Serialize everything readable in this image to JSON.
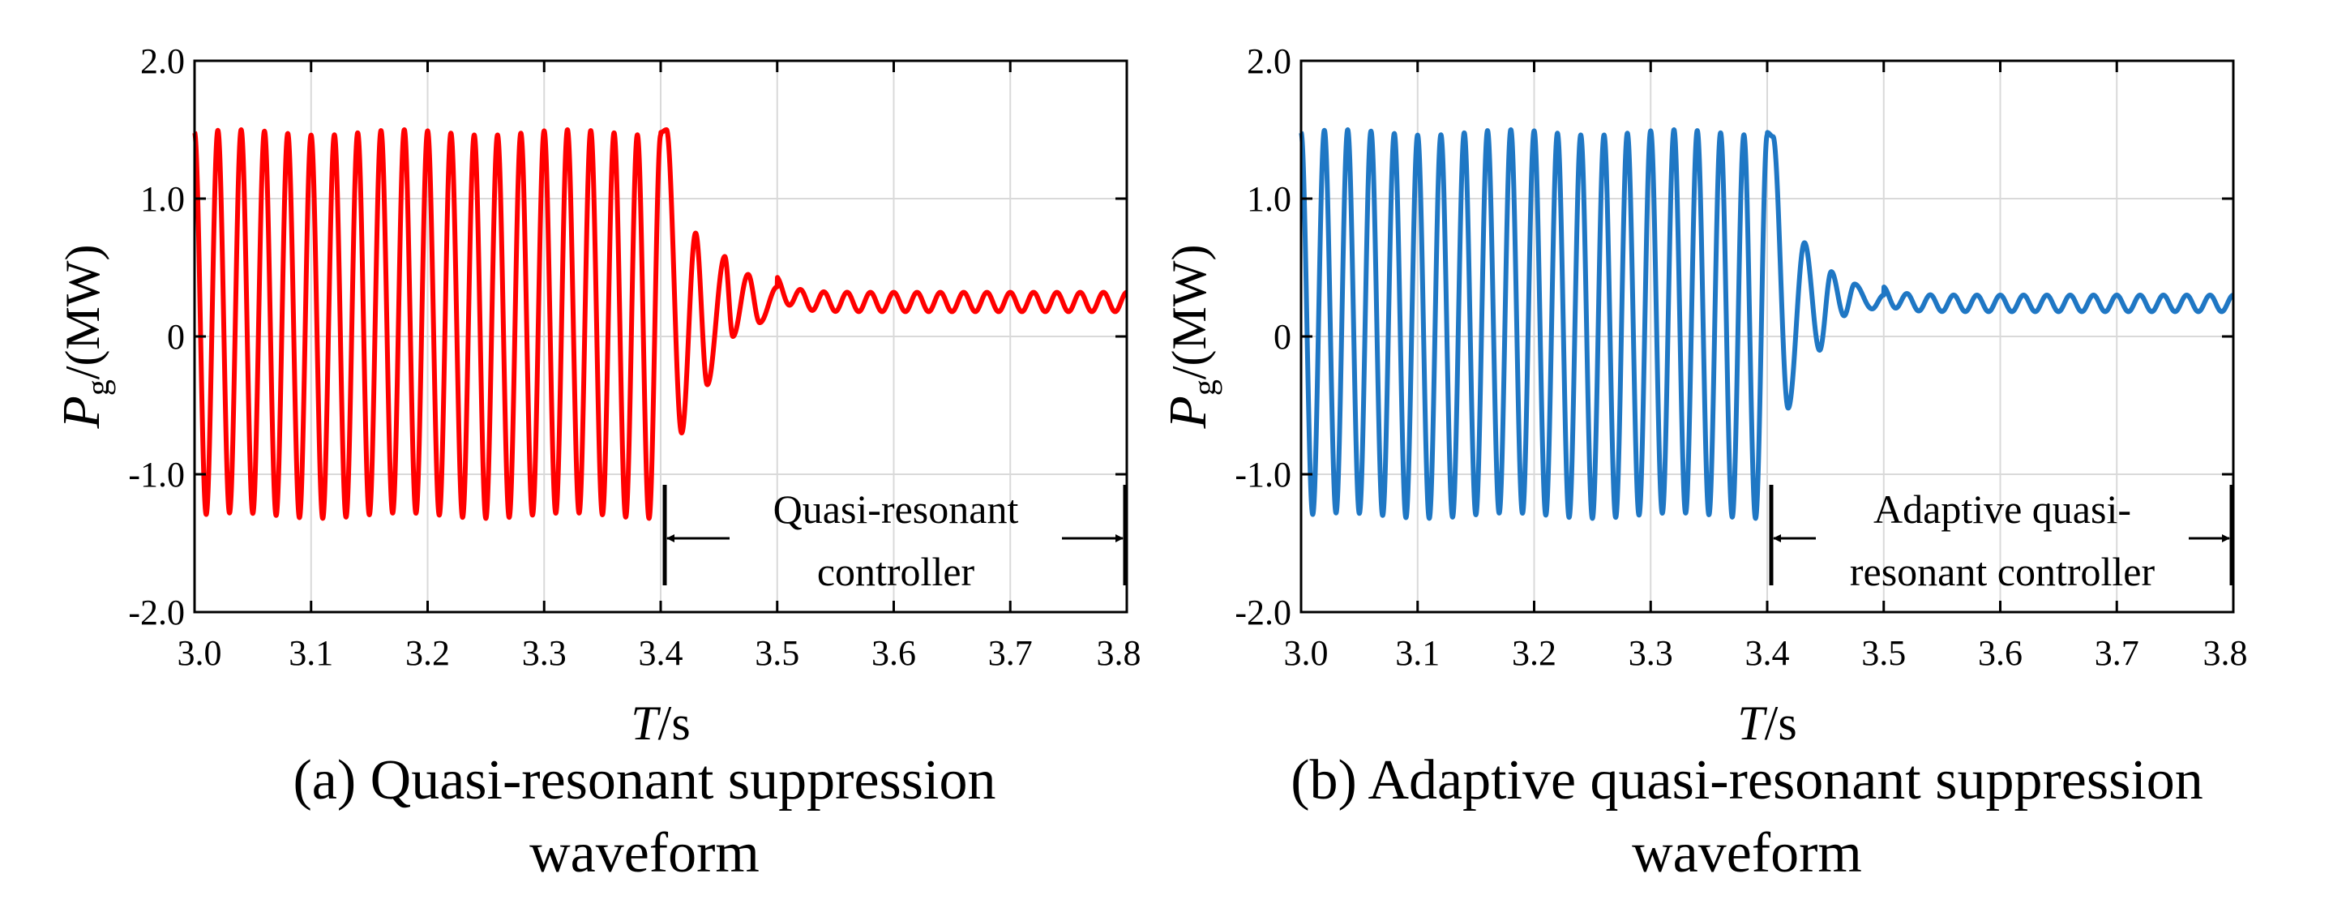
{
  "chart_data": [
    {
      "type": "line",
      "panel": "a",
      "caption_lines": [
        "(a) Quasi-resonant suppression",
        "waveform"
      ],
      "series": [
        {
          "name": "Pg",
          "color": "#ff0000"
        }
      ],
      "xlabel_var": "T",
      "xlabel_unit": "/s",
      "ylabel_var": "P",
      "ylabel_sub": "g",
      "ylabel_unit": "/(MW)",
      "xlim": [
        3.0,
        3.8
      ],
      "ylim": [
        -2.0,
        2.0
      ],
      "xticks": [
        "3.0",
        "3.1",
        "3.2",
        "3.3",
        "3.4",
        "3.5",
        "3.6",
        "3.7",
        "3.8"
      ],
      "yticks": [
        "-2.0",
        "-1.0",
        "0",
        "1.0",
        "2.0"
      ],
      "grid": true,
      "waveform": {
        "switch_time": 3.4,
        "frequency_hz": 50,
        "pre_max": 1.48,
        "pre_min": -1.3,
        "post_mean": 0.25,
        "post_ripple_amplitude": 0.07,
        "transient": [
          [
            3.405,
            1.5
          ],
          [
            3.418,
            -0.7
          ],
          [
            3.43,
            0.75
          ],
          [
            3.44,
            -0.35
          ],
          [
            3.455,
            0.58
          ],
          [
            3.462,
            0.0
          ],
          [
            3.475,
            0.45
          ],
          [
            3.485,
            0.1
          ],
          [
            3.5,
            0.36
          ]
        ]
      },
      "annotation": {
        "lines": [
          "Quasi-resonant",
          "controller"
        ],
        "x_start": 3.4,
        "x_end": 3.8
      }
    },
    {
      "type": "line",
      "panel": "b",
      "caption_lines": [
        "(b) Adaptive quasi-resonant suppression",
        "waveform"
      ],
      "series": [
        {
          "name": "Pg",
          "color": "#1f77c4"
        }
      ],
      "xlabel_var": "T",
      "xlabel_unit": "/s",
      "ylabel_var": "P",
      "ylabel_sub": "g",
      "ylabel_unit": "/(MW)",
      "xlim": [
        3.0,
        3.8
      ],
      "ylim": [
        -2.0,
        2.0
      ],
      "xticks": [
        "3.0",
        "3.1",
        "3.2",
        "3.3",
        "3.4",
        "3.5",
        "3.6",
        "3.7",
        "3.8"
      ],
      "yticks": [
        "-2.0",
        "-1.0",
        "0",
        "1.0",
        "2.0"
      ],
      "grid": true,
      "waveform": {
        "switch_time": 3.4,
        "frequency_hz": 50,
        "pre_max": 1.48,
        "pre_min": -1.3,
        "post_mean": 0.24,
        "post_ripple_amplitude": 0.06,
        "transient": [
          [
            3.405,
            1.45
          ],
          [
            3.418,
            -0.52
          ],
          [
            3.432,
            0.68
          ],
          [
            3.445,
            -0.1
          ],
          [
            3.455,
            0.47
          ],
          [
            3.466,
            0.15
          ],
          [
            3.475,
            0.38
          ],
          [
            3.49,
            0.2
          ],
          [
            3.5,
            0.3
          ]
        ]
      },
      "annotation": {
        "lines": [
          "Adaptive quasi-",
          "resonant controller"
        ],
        "x_start": 3.4,
        "x_end": 3.8
      }
    }
  ]
}
